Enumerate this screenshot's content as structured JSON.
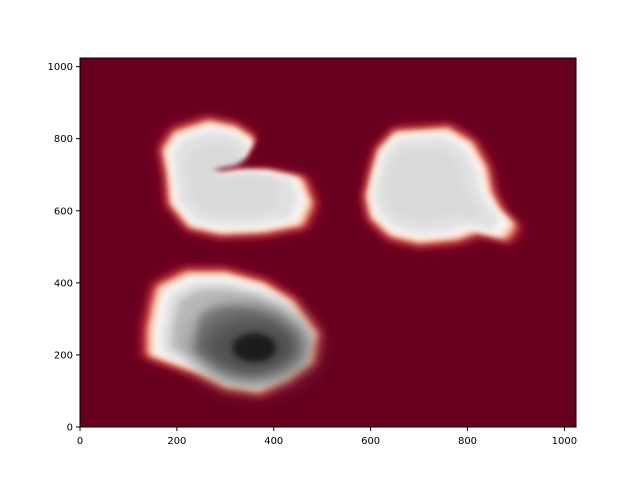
{
  "chart_data": {
    "type": "heatmap",
    "title": "",
    "xlabel": "",
    "ylabel": "",
    "xlim": [
      0,
      1024
    ],
    "ylim": [
      0,
      1024
    ],
    "x_ticks": [
      0,
      200,
      400,
      600,
      800,
      1000
    ],
    "y_ticks": [
      0,
      200,
      400,
      600,
      800,
      1000
    ],
    "x_tick_labels": [
      "0",
      "200",
      "400",
      "600",
      "800",
      "1000"
    ],
    "y_tick_labels": [
      "0",
      "200",
      "400",
      "600",
      "800",
      "1000"
    ],
    "grid": false,
    "legend": "none",
    "colormap": "RdGy",
    "background_value": "dark red",
    "colors": {
      "background": "#67001f",
      "edge_red": "#b2182b",
      "edge_orange": "#f4a582",
      "edge_pale": "#fddbc7",
      "plateau_light": "#e0e0e0",
      "plateau_mid": "#bababa",
      "plateau_dark": "#878787",
      "core_dark": "#1a1a1a"
    },
    "blobs": [
      {
        "name": "upper-left blob",
        "center": [
          300,
          680
        ],
        "outline": [
          [
            195,
            820
          ],
          [
            265,
            850
          ],
          [
            320,
            835
          ],
          [
            360,
            800
          ],
          [
            340,
            755
          ],
          [
            280,
            740
          ],
          [
            250,
            720
          ],
          [
            285,
            700
          ],
          [
            340,
            710
          ],
          [
            390,
            710
          ],
          [
            460,
            690
          ],
          [
            480,
            620
          ],
          [
            460,
            560
          ],
          [
            380,
            540
          ],
          [
            290,
            535
          ],
          [
            225,
            555
          ],
          [
            185,
            620
          ],
          [
            180,
            700
          ],
          [
            170,
            770
          ]
        ],
        "plateau_value": "light grey"
      },
      {
        "name": "upper-right blob",
        "center": [
          700,
          680
        ],
        "outline": [
          [
            650,
            820
          ],
          [
            760,
            830
          ],
          [
            810,
            790
          ],
          [
            840,
            720
          ],
          [
            850,
            650
          ],
          [
            870,
            600
          ],
          [
            900,
            560
          ],
          [
            880,
            520
          ],
          [
            820,
            540
          ],
          [
            780,
            520
          ],
          [
            700,
            510
          ],
          [
            640,
            530
          ],
          [
            600,
            580
          ],
          [
            590,
            640
          ],
          [
            600,
            700
          ],
          [
            615,
            770
          ]
        ],
        "plateau_value": "light grey"
      },
      {
        "name": "lower-left blob",
        "center": [
          320,
          260
        ],
        "outline": [
          [
            160,
            390
          ],
          [
            220,
            430
          ],
          [
            300,
            430
          ],
          [
            380,
            400
          ],
          [
            440,
            350
          ],
          [
            490,
            260
          ],
          [
            480,
            180
          ],
          [
            430,
            130
          ],
          [
            370,
            95
          ],
          [
            300,
            110
          ],
          [
            240,
            150
          ],
          [
            180,
            180
          ],
          [
            140,
            200
          ],
          [
            140,
            270
          ],
          [
            150,
            340
          ]
        ],
        "plateau_value": "grey to black",
        "core": [
          360,
          220
        ]
      }
    ]
  }
}
